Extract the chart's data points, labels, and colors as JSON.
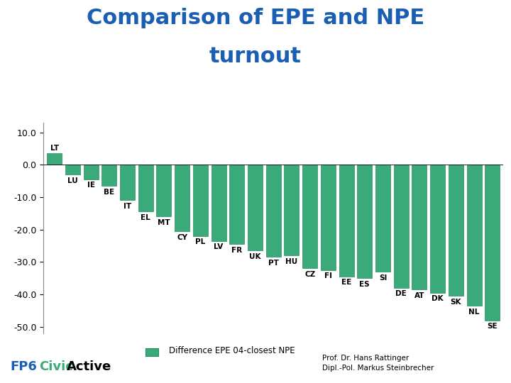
{
  "title_line1": "Comparison of EPE and NPE",
  "title_line2": "turnout",
  "title_color": "#1a5fb4",
  "categories": [
    "LT",
    "LU",
    "IE",
    "BE",
    "IT",
    "EL",
    "MT",
    "CY",
    "PL",
    "LV",
    "FR",
    "UK",
    "PT",
    "HU",
    "CZ",
    "FI",
    "EE",
    "ES",
    "SI",
    "DE",
    "AT",
    "DK",
    "SK",
    "NL",
    "SE"
  ],
  "values": [
    3.5,
    -3.0,
    -4.5,
    -6.5,
    -11.0,
    -14.5,
    -16.0,
    -20.5,
    -22.0,
    -23.5,
    -24.5,
    -26.5,
    -28.5,
    -28.0,
    -32.0,
    -32.5,
    -34.5,
    -35.0,
    -33.0,
    -38.0,
    -38.5,
    -39.5,
    -40.5,
    -43.5,
    -48.0
  ],
  "bar_color": "#3aaa7a",
  "bar_edge_color": "#2a8a5a",
  "ylim": [
    -52.0,
    13.0
  ],
  "yticks": [
    10.0,
    0.0,
    -10.0,
    -20.0,
    -30.0,
    -40.0,
    -50.0
  ],
  "legend_label": "Difference EPE 04-closest NPE",
  "legend_color": "#3aaa7a",
  "legend_edge_color": "#2a8a5a",
  "background_color": "#ffffff",
  "fp6_color": "#1a5fb4",
  "civic_color": "#3aaa7a",
  "active_color": "#000000",
  "footer_right1": "Prof. Dr. Hans Rattinger",
  "footer_right2": "Dipl.-Pol. Markus Steinbrecher",
  "label_fontsize": 7.5,
  "title_fontsize": 22,
  "ytick_fontsize": 9
}
